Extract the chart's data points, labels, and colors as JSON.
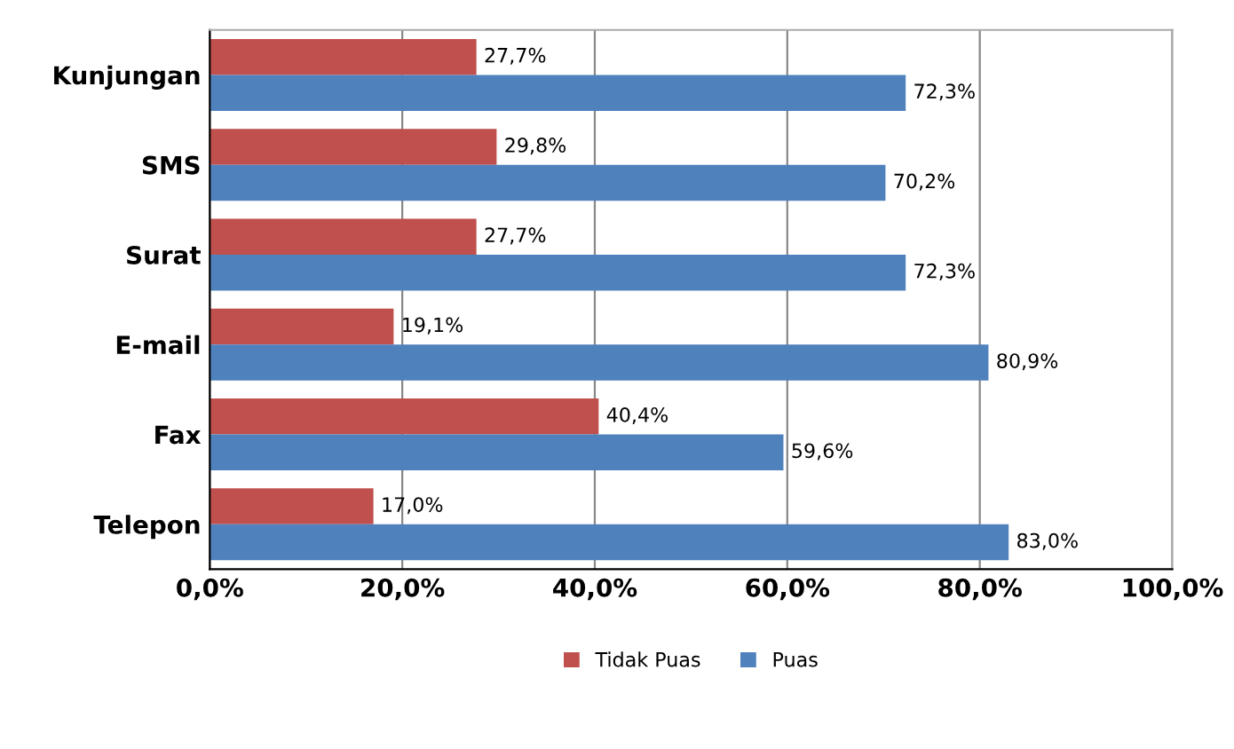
{
  "chart_data": {
    "type": "bar",
    "orientation": "horizontal",
    "categories": [
      "Kunjungan",
      "SMS",
      "Surat",
      "E-mail",
      "Fax",
      "Telepon"
    ],
    "series": [
      {
        "name": "Tidak Puas",
        "color": "#c0504d",
        "values": [
          27.7,
          29.8,
          27.7,
          19.1,
          40.4,
          17.0
        ],
        "value_labels": [
          "27,7%",
          "29,8%",
          "27,7%",
          "19,1%",
          "40,4%",
          "17,0%"
        ]
      },
      {
        "name": "Puas",
        "color": "#4f81bd",
        "values": [
          72.3,
          70.2,
          72.3,
          80.9,
          59.6,
          83.0
        ],
        "value_labels": [
          "72,3%",
          "70,2%",
          "72,3%",
          "80,9%",
          "59,6%",
          "83,0%"
        ]
      }
    ],
    "xlim": [
      0,
      100
    ],
    "xticks": [
      {
        "value": 0,
        "label": "0,0%"
      },
      {
        "value": 20,
        "label": "20,0%"
      },
      {
        "value": 40,
        "label": "40,0%"
      },
      {
        "value": 60,
        "label": "60,0%"
      },
      {
        "value": 80,
        "label": "80,0%"
      },
      {
        "value": 100,
        "label": "100,0%"
      }
    ],
    "grid": "x",
    "legend": "bottom"
  }
}
